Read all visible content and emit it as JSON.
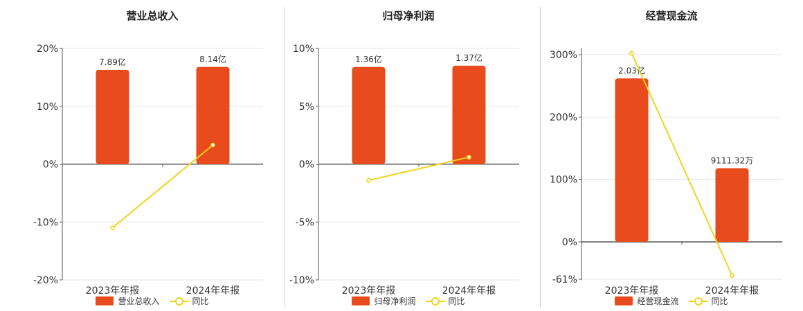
{
  "colors": {
    "bar": "#e84b1c",
    "line": "#f2d31b",
    "axis": "#555555",
    "grid": "#e6e6e6"
  },
  "chart_data": [
    {
      "type": "bar",
      "title": "营业总收入",
      "categories": [
        "2023年年报",
        "2024年年报"
      ],
      "series": [
        {
          "name": "营业总收入",
          "values": [
            16.3,
            16.8
          ],
          "labels": [
            "7.89亿",
            "8.14亿"
          ]
        },
        {
          "name": "同比",
          "type": "line",
          "values": [
            -11.0,
            3.3
          ]
        }
      ],
      "yticks": [
        20,
        10,
        0,
        -10,
        -20
      ],
      "ytick_labels": [
        "20%",
        "10%",
        "0%",
        "-10%",
        "-20%"
      ],
      "ylim": [
        -20,
        20
      ],
      "grid": true,
      "legend": "bottom"
    },
    {
      "type": "bar",
      "title": "归母净利润",
      "categories": [
        "2023年年报",
        "2024年年报"
      ],
      "series": [
        {
          "name": "归母净利润",
          "values": [
            8.4,
            8.5
          ],
          "labels": [
            "1.36亿",
            "1.37亿"
          ]
        },
        {
          "name": "同比",
          "type": "line",
          "values": [
            -1.4,
            0.6
          ]
        }
      ],
      "yticks": [
        10,
        5,
        0,
        -5,
        -10
      ],
      "ytick_labels": [
        "10%",
        "5%",
        "0%",
        "-5%",
        "-10%"
      ],
      "ylim": [
        -10,
        10
      ],
      "grid": true,
      "legend": "bottom"
    },
    {
      "type": "bar",
      "title": "经营现金流",
      "categories": [
        "2023年年报",
        "2024年年报"
      ],
      "series": [
        {
          "name": "经营现金流",
          "values": [
            262,
            118
          ],
          "labels": [
            "2.03亿",
            "9111.32万"
          ]
        },
        {
          "name": "同比",
          "type": "line",
          "values": [
            302,
            -55
          ]
        }
      ],
      "yticks": [
        300,
        200,
        100,
        0,
        -61
      ],
      "ytick_labels": [
        "300%",
        "200%",
        "100%",
        "0%",
        "-61%"
      ],
      "ylim": [
        -61,
        310
      ],
      "grid": true,
      "legend": "bottom"
    }
  ]
}
